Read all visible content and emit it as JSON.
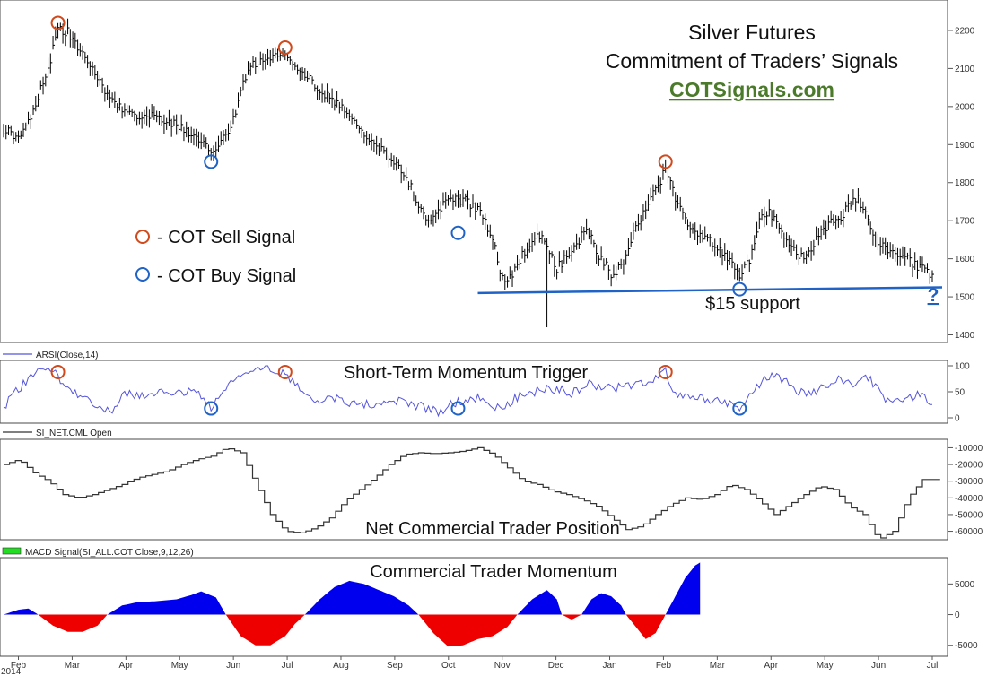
{
  "chart_data": [
    {
      "type": "ohlc",
      "title": "Silver Futures",
      "subtitle": "Commitment of Traders’ Signals",
      "source_link": "COTSignals.com",
      "y_ticks": [
        "1400",
        "1500",
        "1600",
        "1700",
        "1800",
        "1900",
        "2000",
        "2100",
        "2200"
      ],
      "ylim": [
        1380,
        2280
      ],
      "x_months": [
        "Feb",
        "Mar",
        "Apr",
        "May",
        "Jun",
        "Jul",
        "Aug",
        "Sep",
        "Oct",
        "Nov",
        "Dec",
        "Jan",
        "Feb",
        "Mar",
        "Apr",
        "May",
        "Jun",
        "Jul"
      ],
      "year_label": "2014",
      "price_path": [
        [
          0,
          1940
        ],
        [
          3,
          1920
        ],
        [
          6,
          1990
        ],
        [
          9,
          2100
        ],
        [
          11,
          2200
        ],
        [
          13,
          2195
        ],
        [
          15,
          2150
        ],
        [
          18,
          2100
        ],
        [
          20,
          2050
        ],
        [
          23,
          2000
        ],
        [
          27,
          1980
        ],
        [
          31,
          1970
        ],
        [
          35,
          1950
        ],
        [
          39,
          1915
        ],
        [
          42,
          1880
        ],
        [
          45,
          1920
        ],
        [
          47,
          1980
        ],
        [
          48,
          2050
        ],
        [
          50,
          2110
        ],
        [
          54,
          2125
        ],
        [
          57,
          2140
        ],
        [
          60,
          2100
        ],
        [
          63,
          2060
        ],
        [
          66,
          2020
        ],
        [
          69,
          1990
        ],
        [
          72,
          1950
        ],
        [
          75,
          1900
        ],
        [
          79,
          1860
        ],
        [
          82,
          1800
        ],
        [
          84,
          1745
        ],
        [
          86,
          1700
        ],
        [
          88,
          1730
        ],
        [
          91,
          1760
        ],
        [
          94,
          1750
        ],
        [
          97,
          1715
        ],
        [
          99,
          1650
        ],
        [
          101,
          1545
        ],
        [
          103,
          1560
        ],
        [
          105,
          1610
        ],
        [
          108,
          1660
        ],
        [
          110,
          1640
        ],
        [
          112,
          1575
        ],
        [
          115,
          1620
        ],
        [
          118,
          1680
        ],
        [
          120,
          1620
        ],
        [
          123,
          1560
        ],
        [
          125,
          1580
        ],
        [
          127,
          1650
        ],
        [
          130,
          1730
        ],
        [
          132,
          1780
        ],
        [
          134,
          1835
        ],
        [
          136,
          1760
        ],
        [
          138,
          1700
        ],
        [
          141,
          1660
        ],
        [
          144,
          1640
        ],
        [
          147,
          1590
        ],
        [
          149,
          1550
        ],
        [
          151,
          1600
        ],
        [
          153,
          1700
        ],
        [
          155,
          1720
        ],
        [
          157,
          1680
        ],
        [
          159,
          1640
        ],
        [
          161,
          1600
        ],
        [
          163,
          1620
        ],
        [
          165,
          1660
        ],
        [
          167,
          1690
        ],
        [
          169,
          1700
        ],
        [
          171,
          1740
        ],
        [
          173,
          1760
        ],
        [
          175,
          1700
        ],
        [
          177,
          1640
        ],
        [
          180,
          1610
        ],
        [
          183,
          1600
        ],
        [
          185,
          1580
        ],
        [
          188,
          1560
        ]
      ],
      "signals": {
        "sell": [
          {
            "x": 11,
            "y": 2220
          },
          {
            "x": 57,
            "y": 2155
          },
          {
            "x": 134,
            "y": 1855
          }
        ],
        "buy": [
          {
            "x": 42,
            "y": 1855
          },
          {
            "x": 92,
            "y": 1668
          },
          {
            "x": 149,
            "y": 1520
          }
        ]
      },
      "support_line": {
        "x1": 96,
        "y1": 1510,
        "x2": 190,
        "y2": 1525
      },
      "support_label": "$15 support",
      "question_mark": "?",
      "legend": [
        {
          "label": "- COT Sell Signal",
          "color": "#d14a1d"
        },
        {
          "label": "- COT Buy Signal",
          "color": "#1f63c6"
        }
      ],
      "colors": {
        "bars": "#000000",
        "sell": "#d14a1d",
        "buy": "#1f63c6",
        "support": "#1f63c6"
      }
    },
    {
      "type": "line",
      "indicator_label": "ARSI(Close,14)",
      "title": "Short-Term Momentum Trigger",
      "y_ticks": [
        "0",
        "50",
        "100"
      ],
      "ylim": [
        0,
        100
      ],
      "path": [
        [
          0,
          20
        ],
        [
          3,
          55
        ],
        [
          6,
          80
        ],
        [
          8,
          95
        ],
        [
          10,
          92
        ],
        [
          12,
          65
        ],
        [
          14,
          48
        ],
        [
          17,
          40
        ],
        [
          20,
          18
        ],
        [
          22,
          5
        ],
        [
          24,
          48
        ],
        [
          27,
          40
        ],
        [
          30,
          42
        ],
        [
          33,
          50
        ],
        [
          36,
          45
        ],
        [
          39,
          55
        ],
        [
          42,
          20
        ],
        [
          45,
          55
        ],
        [
          48,
          85
        ],
        [
          51,
          100
        ],
        [
          54,
          98
        ],
        [
          57,
          82
        ],
        [
          60,
          55
        ],
        [
          63,
          35
        ],
        [
          66,
          40
        ],
        [
          70,
          30
        ],
        [
          74,
          25
        ],
        [
          78,
          35
        ],
        [
          82,
          28
        ],
        [
          86,
          18
        ],
        [
          88,
          10
        ],
        [
          91,
          28
        ],
        [
          94,
          35
        ],
        [
          97,
          40
        ],
        [
          99,
          15
        ],
        [
          101,
          22
        ],
        [
          104,
          40
        ],
        [
          108,
          52
        ],
        [
          112,
          55
        ],
        [
          115,
          48
        ],
        [
          118,
          65
        ],
        [
          121,
          55
        ],
        [
          124,
          58
        ],
        [
          127,
          62
        ],
        [
          131,
          70
        ],
        [
          134,
          90
        ],
        [
          136,
          45
        ],
        [
          139,
          35
        ],
        [
          142,
          38
        ],
        [
          145,
          30
        ],
        [
          148,
          22
        ],
        [
          149,
          18
        ],
        [
          152,
          50
        ],
        [
          154,
          80
        ],
        [
          157,
          78
        ],
        [
          160,
          55
        ],
        [
          163,
          45
        ],
        [
          166,
          60
        ],
        [
          169,
          72
        ],
        [
          172,
          60
        ],
        [
          175,
          80
        ],
        [
          178,
          40
        ],
        [
          181,
          35
        ],
        [
          184,
          40
        ],
        [
          186,
          45
        ],
        [
          188,
          20
        ]
      ],
      "signals": {
        "sell": [
          {
            "x": 11,
            "y": 88
          },
          {
            "x": 57,
            "y": 88
          },
          {
            "x": 134,
            "y": 88
          }
        ],
        "buy": [
          {
            "x": 42,
            "y": 18
          },
          {
            "x": 92,
            "y": 18
          },
          {
            "x": 149,
            "y": 18
          }
        ]
      },
      "colors": {
        "line": "#5555dd"
      }
    },
    {
      "type": "line",
      "indicator_label": "SI_NET.CML Open",
      "title": "Net Commercial Trader Position",
      "y_ticks": [
        "-10000",
        "-20000",
        "-30000",
        "-40000",
        "-50000",
        "-60000"
      ],
      "ylim": [
        -64000,
        -6000
      ],
      "path": [
        [
          0,
          -20000
        ],
        [
          3,
          -17000
        ],
        [
          6,
          -25000
        ],
        [
          9,
          -30000
        ],
        [
          12,
          -38000
        ],
        [
          15,
          -40000
        ],
        [
          18,
          -38000
        ],
        [
          21,
          -35000
        ],
        [
          24,
          -32000
        ],
        [
          27,
          -28000
        ],
        [
          30,
          -26000
        ],
        [
          33,
          -24000
        ],
        [
          36,
          -20000
        ],
        [
          39,
          -17000
        ],
        [
          42,
          -15000
        ],
        [
          45,
          -10000
        ],
        [
          48,
          -13000
        ],
        [
          51,
          -32000
        ],
        [
          54,
          -50000
        ],
        [
          57,
          -60000
        ],
        [
          60,
          -61000
        ],
        [
          63,
          -58000
        ],
        [
          66,
          -52000
        ],
        [
          69,
          -42000
        ],
        [
          72,
          -35000
        ],
        [
          75,
          -28000
        ],
        [
          78,
          -20000
        ],
        [
          81,
          -14000
        ],
        [
          84,
          -13000
        ],
        [
          87,
          -13500
        ],
        [
          90,
          -13000
        ],
        [
          93,
          -12000
        ],
        [
          96,
          -10000
        ],
        [
          99,
          -14000
        ],
        [
          102,
          -22000
        ],
        [
          105,
          -30000
        ],
        [
          108,
          -32000
        ],
        [
          111,
          -36000
        ],
        [
          114,
          -38000
        ],
        [
          117,
          -41000
        ],
        [
          120,
          -45000
        ],
        [
          123,
          -52000
        ],
        [
          126,
          -59000
        ],
        [
          129,
          -57000
        ],
        [
          132,
          -50000
        ],
        [
          135,
          -44000
        ],
        [
          138,
          -40000
        ],
        [
          141,
          -41000
        ],
        [
          144,
          -38000
        ],
        [
          147,
          -32000
        ],
        [
          150,
          -35000
        ],
        [
          153,
          -42000
        ],
        [
          156,
          -50000
        ],
        [
          159,
          -44000
        ],
        [
          162,
          -38000
        ],
        [
          165,
          -33000
        ],
        [
          168,
          -35000
        ],
        [
          171,
          -45000
        ],
        [
          174,
          -50000
        ],
        [
          177,
          -65000
        ],
        [
          180,
          -60000
        ],
        [
          183,
          -40000
        ],
        [
          186,
          -29000
        ],
        [
          190,
          -29000
        ]
      ],
      "colors": {
        "line": "#333333"
      }
    },
    {
      "type": "area",
      "indicator_label": "MACD Signal(SI_ALL.COT Close,9,12,26)",
      "title": "Commercial Trader Momentum",
      "y_ticks": [
        "5000",
        "0",
        "-5000"
      ],
      "ylim": [
        -6500,
        9000
      ],
      "path": [
        [
          0,
          0
        ],
        [
          3,
          800
        ],
        [
          5,
          1000
        ],
        [
          7,
          0
        ],
        [
          10,
          -1800
        ],
        [
          13,
          -2800
        ],
        [
          16,
          -2800
        ],
        [
          19,
          -1800
        ],
        [
          21,
          0
        ],
        [
          24,
          1500
        ],
        [
          27,
          2000
        ],
        [
          31,
          2200
        ],
        [
          35,
          2500
        ],
        [
          38,
          3200
        ],
        [
          40,
          3800
        ],
        [
          43,
          2800
        ],
        [
          45,
          0
        ],
        [
          48,
          -3500
        ],
        [
          51,
          -5000
        ],
        [
          54,
          -5000
        ],
        [
          57,
          -3500
        ],
        [
          59,
          -1500
        ],
        [
          61,
          0
        ],
        [
          64,
          2500
        ],
        [
          67,
          4500
        ],
        [
          70,
          5500
        ],
        [
          73,
          5000
        ],
        [
          76,
          4000
        ],
        [
          79,
          3000
        ],
        [
          82,
          1500
        ],
        [
          84,
          0
        ],
        [
          87,
          -3000
        ],
        [
          90,
          -5200
        ],
        [
          93,
          -5000
        ],
        [
          96,
          -4000
        ],
        [
          99,
          -3500
        ],
        [
          102,
          -2000
        ],
        [
          104,
          0
        ],
        [
          107,
          2500
        ],
        [
          110,
          4000
        ],
        [
          112,
          2500
        ],
        [
          113,
          0
        ],
        [
          115,
          -800
        ],
        [
          117,
          0
        ],
        [
          119,
          2500
        ],
        [
          121,
          3500
        ],
        [
          123,
          3000
        ],
        [
          125,
          1500
        ],
        [
          126,
          0
        ],
        [
          128,
          -2000
        ],
        [
          130,
          -4000
        ],
        [
          132,
          -3000
        ],
        [
          134,
          0
        ],
        [
          136,
          3000
        ],
        [
          138,
          6000
        ],
        [
          140,
          8000
        ],
        [
          141,
          8500
        ]
      ],
      "colors": {
        "positive": "#0000ee",
        "negative": "#ee0000"
      }
    }
  ]
}
